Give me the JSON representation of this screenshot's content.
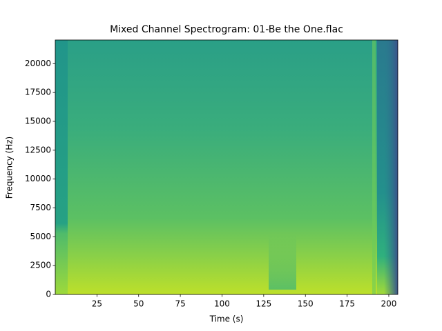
{
  "chart_data": {
    "type": "spectrogram",
    "title": "Mixed Channel Spectrogram: 01-Be the One.flac",
    "x_label": "Time (s)",
    "y_label": "Frequency (Hz)",
    "xlim": [
      0,
      205.4
    ],
    "ylim": [
      0,
      22050
    ],
    "xticks": [
      25,
      50,
      75,
      100,
      125,
      150,
      175,
      200
    ],
    "yticks": [
      0,
      2500,
      5000,
      7500,
      10000,
      12500,
      15000,
      17500,
      20000
    ]
  }
}
